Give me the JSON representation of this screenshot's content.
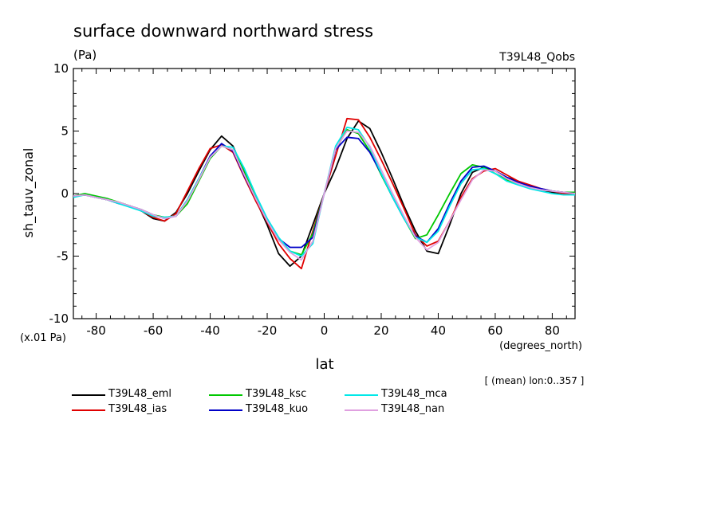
{
  "chart_data": {
    "type": "line",
    "title": "surface downward northward stress",
    "units_label": "(Pa)",
    "experiment_label": "T39L48_Qobs",
    "ylabel": "sh_tauv_zonal",
    "xlabel": "lat",
    "x_unit_label": "(degrees_north)",
    "y_scale_label": "(x.01 Pa)",
    "footnote": "[ (mean) lon:0..357 ]",
    "xlim": [
      -88,
      88
    ],
    "ylim": [
      -10,
      10
    ],
    "x_ticks": [
      -80,
      -60,
      -40,
      -20,
      0,
      20,
      40,
      60,
      80
    ],
    "x_tick_labels": [
      "-80",
      "-60",
      "-40",
      "-20",
      "0",
      "20",
      "40",
      "60",
      "80"
    ],
    "y_ticks": [
      -10,
      -5,
      0,
      5,
      10
    ],
    "y_tick_labels": [
      "-10",
      "-5",
      "0",
      "5",
      "10"
    ],
    "grid": false,
    "legend_position": "bottom",
    "x": [
      -88,
      -84,
      -80,
      -76,
      -72,
      -68,
      -64,
      -60,
      -56,
      -52,
      -48,
      -44,
      -40,
      -36,
      -32,
      -28,
      -24,
      -20,
      -16,
      -12,
      -8,
      -4,
      0,
      4,
      8,
      12,
      16,
      20,
      24,
      28,
      32,
      36,
      40,
      44,
      48,
      52,
      56,
      60,
      64,
      68,
      72,
      76,
      80,
      84,
      88
    ],
    "series": [
      {
        "name": "T39L48_eml",
        "color": "#000000",
        "values": [
          -0.2,
          -0.1,
          -0.3,
          -0.5,
          -0.7,
          -1.0,
          -1.4,
          -2.0,
          -2.2,
          -1.5,
          0.0,
          1.8,
          3.5,
          4.6,
          3.8,
          1.7,
          -0.5,
          -2.5,
          -4.8,
          -5.8,
          -5.0,
          -2.5,
          0.0,
          2.0,
          4.4,
          5.8,
          5.2,
          3.3,
          1.2,
          -1.0,
          -3.0,
          -4.6,
          -4.8,
          -2.5,
          0.0,
          1.7,
          2.1,
          1.8,
          1.3,
          1.0,
          0.6,
          0.3,
          0.1,
          0.0,
          0.0
        ]
      },
      {
        "name": "T39L48_ias",
        "color": "#e00000",
        "values": [
          -0.2,
          -0.1,
          -0.3,
          -0.5,
          -0.8,
          -1.0,
          -1.4,
          -1.9,
          -2.2,
          -1.6,
          0.2,
          2.0,
          3.6,
          3.9,
          3.3,
          1.3,
          -0.6,
          -2.3,
          -4.0,
          -5.2,
          -6.0,
          -3.0,
          0.0,
          3.0,
          6.0,
          5.9,
          4.5,
          2.7,
          0.8,
          -1.2,
          -3.3,
          -4.2,
          -3.8,
          -2.2,
          -0.3,
          1.2,
          1.8,
          2.0,
          1.5,
          1.0,
          0.7,
          0.4,
          0.2,
          0.0,
          -0.1
        ]
      },
      {
        "name": "T39L48_ksc",
        "color": "#00c800",
        "values": [
          -0.2,
          0.0,
          -0.2,
          -0.4,
          -0.7,
          -1.0,
          -1.3,
          -1.7,
          -1.9,
          -1.8,
          -0.8,
          1.0,
          2.8,
          3.8,
          3.5,
          1.8,
          -0.3,
          -2.2,
          -3.6,
          -4.6,
          -4.9,
          -3.2,
          0.0,
          3.5,
          5.1,
          4.8,
          3.4,
          1.5,
          -0.3,
          -2.0,
          -3.6,
          -3.3,
          -1.7,
          0.0,
          1.6,
          2.3,
          2.1,
          1.6,
          1.1,
          0.8,
          0.5,
          0.3,
          0.2,
          0.1,
          0.1
        ]
      },
      {
        "name": "T39L48_kuo",
        "color": "#0000c8",
        "values": [
          -0.2,
          -0.1,
          -0.3,
          -0.5,
          -0.8,
          -1.0,
          -1.3,
          -1.7,
          -2.0,
          -1.8,
          -0.5,
          1.2,
          3.0,
          4.0,
          3.4,
          1.4,
          -0.4,
          -2.2,
          -3.6,
          -4.3,
          -4.3,
          -3.5,
          0.0,
          3.5,
          4.5,
          4.4,
          3.3,
          1.6,
          -0.3,
          -2.0,
          -3.4,
          -3.9,
          -2.8,
          -0.8,
          1.0,
          2.1,
          2.2,
          1.8,
          1.3,
          0.9,
          0.6,
          0.4,
          0.2,
          0.1,
          0.0
        ]
      },
      {
        "name": "T39L48_mca",
        "color": "#00e8e8",
        "values": [
          -0.3,
          -0.1,
          -0.3,
          -0.5,
          -0.8,
          -1.1,
          -1.4,
          -1.8,
          -1.9,
          -1.8,
          -0.5,
          1.2,
          2.9,
          3.8,
          3.7,
          2.0,
          -0.1,
          -2.0,
          -3.5,
          -4.6,
          -5.0,
          -4.0,
          0.0,
          3.8,
          5.3,
          5.1,
          3.7,
          1.6,
          -0.3,
          -2.0,
          -3.5,
          -3.9,
          -3.0,
          -1.0,
          0.8,
          1.9,
          2.0,
          1.6,
          1.0,
          0.7,
          0.4,
          0.2,
          0.0,
          -0.1,
          -0.1
        ]
      },
      {
        "name": "T39L48_nan",
        "color": "#e0a0e0",
        "values": [
          -0.2,
          -0.1,
          -0.3,
          -0.5,
          -0.7,
          -1.0,
          -1.3,
          -1.7,
          -2.0,
          -1.8,
          -0.6,
          1.1,
          2.9,
          3.8,
          3.5,
          1.5,
          -0.4,
          -2.2,
          -3.7,
          -4.7,
          -5.3,
          -3.8,
          0.0,
          3.6,
          5.0,
          4.9,
          3.8,
          1.9,
          0.0,
          -1.8,
          -3.5,
          -4.5,
          -3.9,
          -2.2,
          -0.5,
          1.1,
          1.9,
          1.8,
          1.2,
          0.8,
          0.5,
          0.3,
          0.2,
          0.1,
          0.0
        ]
      }
    ]
  }
}
